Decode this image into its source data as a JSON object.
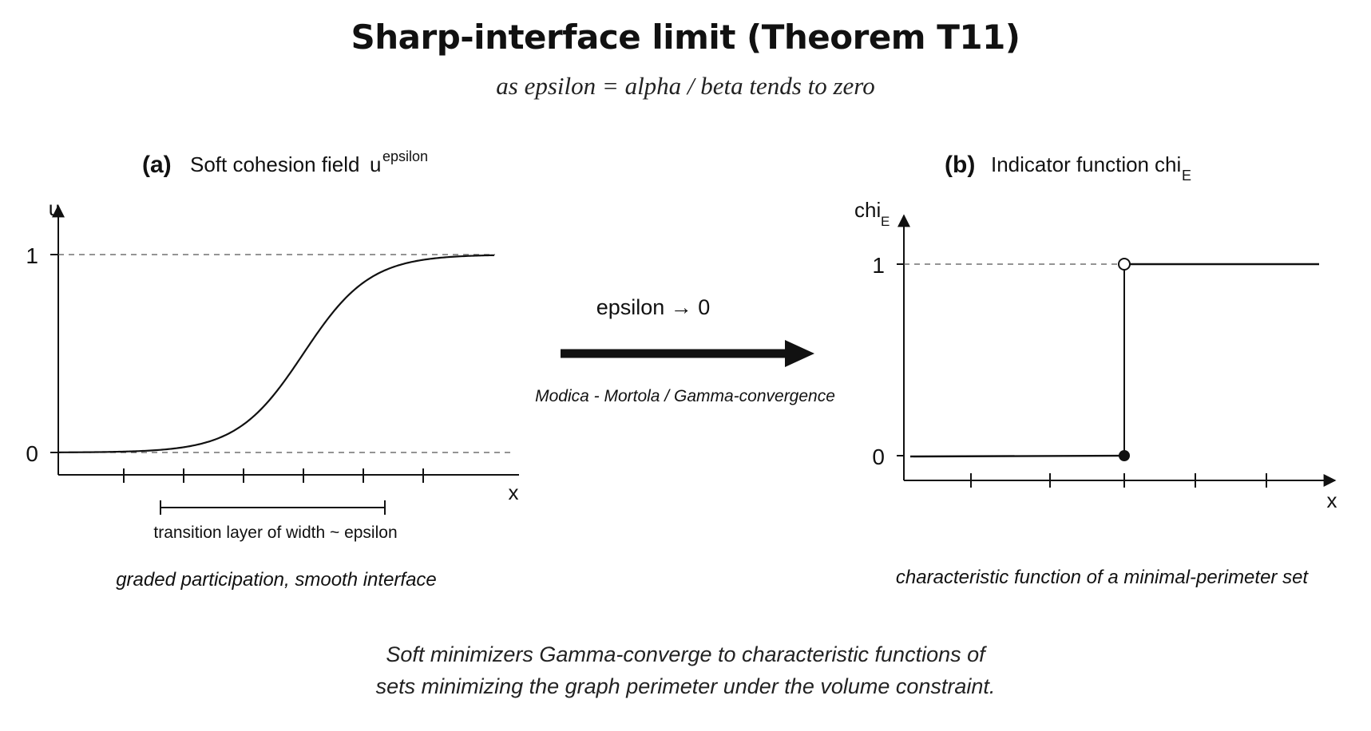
{
  "header": {
    "title": "Sharp-interface limit (Theorem T11)",
    "subtitle": "as epsilon = alpha / beta tends to zero"
  },
  "panel_a": {
    "letter": "(a)",
    "title": "Soft cohesion field",
    "symbol": "u",
    "symbol_sup": "epsilon",
    "y_axis": "u",
    "x_axis": "x",
    "tick_one": "1",
    "tick_zero": "0",
    "bracket_label": "transition layer of width ~ epsilon",
    "caption": "graded participation, smooth interface"
  },
  "arrow": {
    "label": "epsilon  →  0",
    "caption": "Modica - Mortola / Gamma-convergence"
  },
  "panel_b": {
    "letter": "(b)",
    "title": "Indicator function",
    "symbol": "chi",
    "symbol_sub": "E",
    "y_axis": "chi",
    "y_axis_sub": "E",
    "x_axis": "x",
    "tick_one": "1",
    "tick_zero": "0",
    "caption": "characteristic function of a minimal-perimeter set"
  },
  "footer": {
    "line1": "Soft minimizers Gamma-converge to characteristic functions of",
    "line2": "sets minimizing the graph perimeter under the volume constraint."
  }
}
